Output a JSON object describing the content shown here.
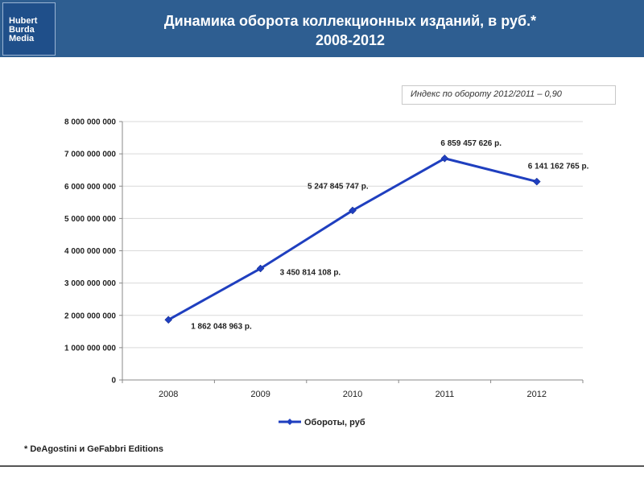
{
  "header": {
    "logo_lines": [
      "Hubert",
      "Burda",
      "Media"
    ],
    "title_line1": "Динамика оборота коллекционных изданий,  в руб.*",
    "title_line2": "2008-2012"
  },
  "index_note": "Индекс по обороту 2012/2011 – 0,90",
  "footnote": "* DeAgostini и GeFabbri Editions",
  "colors": {
    "header_bg": "#2e5e91",
    "series": "#1f3fbf",
    "grid": "#d9d9d9"
  },
  "chart_data": {
    "type": "line",
    "title": "",
    "xlabel": "",
    "ylabel": "",
    "categories": [
      "2008",
      "2009",
      "2010",
      "2011",
      "2012"
    ],
    "series": [
      {
        "name": "Обороты, руб",
        "values": [
          1862048963,
          3450814108,
          5247845747,
          6859457626,
          6141162765
        ],
        "data_labels": [
          "1 862 048 963 р.",
          "3 450 814 108 р.",
          "5 247 845 747 р.",
          "6 859 457 626 р.",
          "6 141 162 765 р."
        ]
      }
    ],
    "ylim": [
      0,
      8000000000
    ],
    "yticks": [
      0,
      1000000000,
      2000000000,
      3000000000,
      4000000000,
      5000000000,
      6000000000,
      7000000000,
      8000000000
    ],
    "ytick_labels": [
      "0",
      "1 000 000 000",
      "2 000 000 000",
      "3 000 000 000",
      "4 000 000 000",
      "5 000 000 000",
      "6 000 000 000",
      "7 000 000 000",
      "8 000 000 000"
    ],
    "grid": true,
    "legend": "bottom"
  }
}
